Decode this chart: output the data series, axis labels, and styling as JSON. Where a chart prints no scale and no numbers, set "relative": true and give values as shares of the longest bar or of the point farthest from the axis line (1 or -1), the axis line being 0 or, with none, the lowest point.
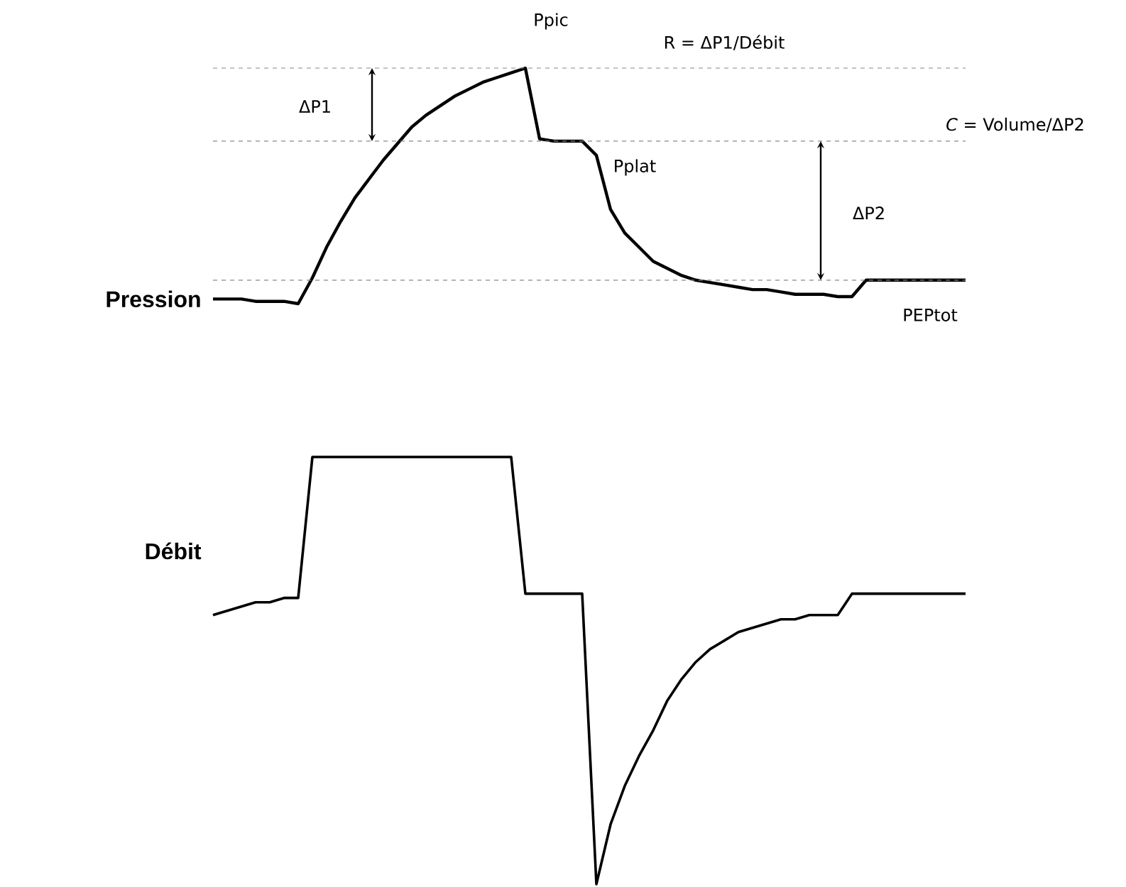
{
  "chart_data": [
    {
      "type": "line",
      "ylabel": "Pression",
      "relative": true,
      "tick_labels": false,
      "categories": [
        null,
        null,
        null,
        null,
        null,
        null,
        null,
        null,
        null,
        null,
        null,
        null,
        null,
        null,
        null,
        null,
        null,
        null,
        null,
        null,
        null,
        null,
        null,
        null,
        null,
        null,
        null,
        null,
        null,
        null,
        null,
        null,
        null,
        null,
        null,
        null,
        null,
        null,
        null,
        null,
        null,
        null,
        null,
        null,
        null,
        null,
        null,
        null,
        null,
        null,
        null,
        null,
        null,
        null
      ],
      "series": [
        {
          "color": "#000000",
          "values": [
            0.02,
            0.02,
            0.02,
            0.01,
            0.01,
            0.01,
            0,
            0.11,
            0.24,
            0.35,
            0.45,
            0.53,
            0.61,
            0.68,
            0.75,
            0.8,
            0.84,
            0.88,
            0.91,
            0.94,
            0.96,
            0.98,
            1,
            0.7,
            0.69,
            0.69,
            0.69,
            0.63,
            0.4,
            0.3,
            0.24,
            0.18,
            0.15,
            0.12,
            0.1,
            0.09,
            0.08,
            0.07,
            0.06,
            0.06,
            0.05,
            0.04,
            0.04,
            0.04,
            0.03,
            0.03,
            0.1,
            0.1,
            0.1,
            0.1,
            0.1,
            0.1,
            0.1,
            0.1
          ]
        }
      ],
      "ref_lines": [
        {
          "axis": "y",
          "value": 1,
          "color": "#888888",
          "line_style": "dashed"
        },
        {
          "axis": "y",
          "value": 0.69,
          "color": "#888888",
          "line_style": "dashed"
        },
        {
          "axis": "y",
          "value": 0.1,
          "color": "#888888",
          "line_style": "dashed"
        }
      ],
      "annotations": [
        "ΔP1",
        "ΔP2",
        "Ppic",
        "Pplat",
        "PEPtot",
        "R = ΔP1/Débit",
        "*C* = Volume/ΔP2"
      ]
    },
    {
      "type": "line",
      "ylabel": "Débit",
      "relative": true,
      "tick_labels": false,
      "categories": [
        null,
        null,
        null,
        null,
        null,
        null,
        null,
        null,
        null,
        null,
        null,
        null,
        null,
        null,
        null,
        null,
        null,
        null,
        null,
        null,
        null,
        null,
        null,
        null,
        null,
        null,
        null,
        null,
        null,
        null,
        null,
        null,
        null,
        null,
        null,
        null,
        null,
        null,
        null,
        null,
        null,
        null,
        null,
        null,
        null,
        null,
        null,
        null,
        null,
        null,
        null,
        null,
        null,
        null
      ],
      "series": [
        {
          "color": "#000000",
          "values": [
            0.63,
            0.64,
            0.65,
            0.66,
            0.66,
            0.67,
            0.67,
            1,
            1,
            1,
            1,
            1,
            1,
            1,
            1,
            1,
            1,
            1,
            1,
            1,
            1,
            1,
            0.68,
            0.68,
            0.68,
            0.68,
            0.68,
            0,
            0.14,
            0.23,
            0.3,
            0.36,
            0.43,
            0.48,
            0.52,
            0.55,
            0.57,
            0.59,
            0.6,
            0.61,
            0.62,
            0.62,
            0.63,
            0.63,
            0.63,
            0.68,
            0.68,
            0.68,
            0.68,
            0.68,
            0.68,
            0.68,
            0.68,
            0.68
          ]
        }
      ]
    }
  ]
}
